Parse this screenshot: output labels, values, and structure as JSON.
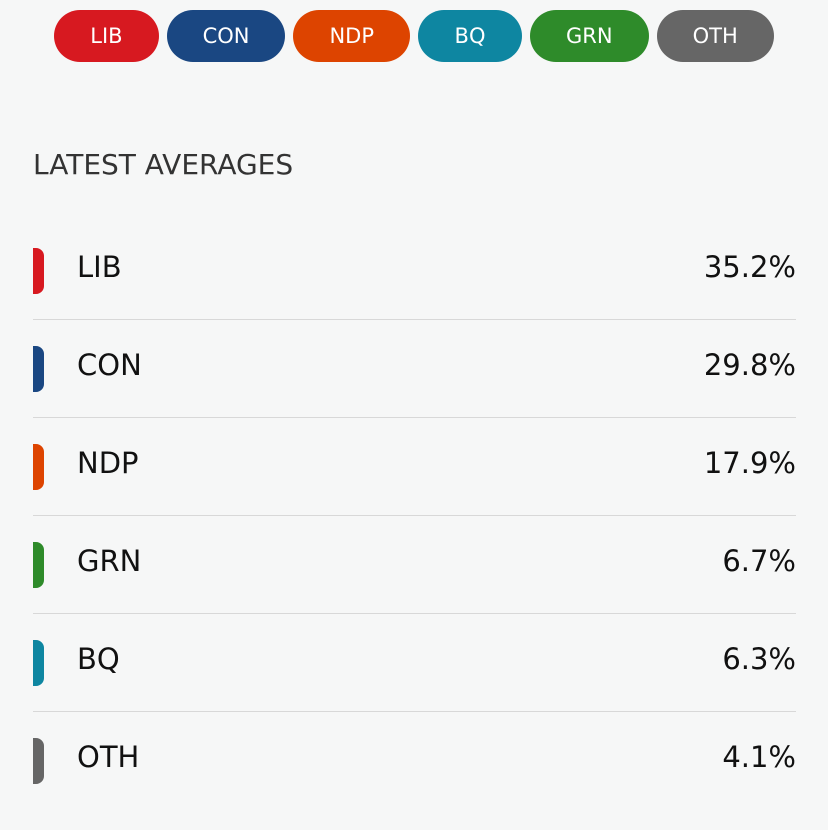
{
  "filters": [
    {
      "label": "LIB",
      "color": "#d71920"
    },
    {
      "label": "CON",
      "color": "#1a4782"
    },
    {
      "label": "NDP",
      "color": "#dd4400"
    },
    {
      "label": "BQ",
      "color": "#0e86a1"
    },
    {
      "label": "GRN",
      "color": "#2e8b2a"
    },
    {
      "label": "OTH",
      "color": "#666666"
    }
  ],
  "heading": "LATEST AVERAGES",
  "rows": [
    {
      "party": "LIB",
      "value": "35.2%",
      "color": "#d71920"
    },
    {
      "party": "CON",
      "value": "29.8%",
      "color": "#1a4782"
    },
    {
      "party": "NDP",
      "value": "17.9%",
      "color": "#dd4400"
    },
    {
      "party": "GRN",
      "value": "6.7%",
      "color": "#2e8b2a"
    },
    {
      "party": "BQ",
      "value": "6.3%",
      "color": "#0e86a1"
    },
    {
      "party": "OTH",
      "value": "4.1%",
      "color": "#666666"
    }
  ]
}
